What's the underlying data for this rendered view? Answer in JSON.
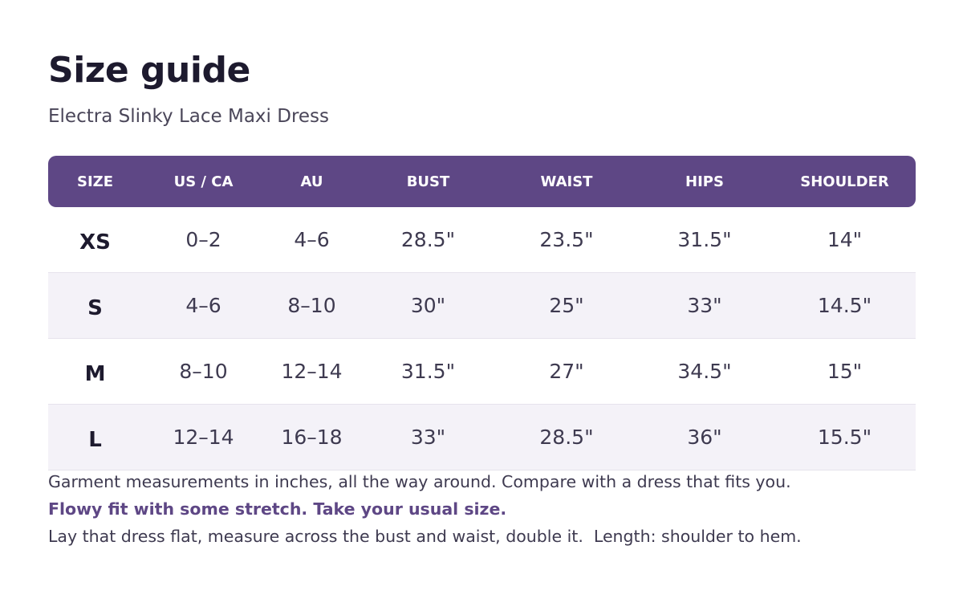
{
  "header": {
    "title": "Size guide",
    "subtitle": "Electra Slinky Lace Maxi Dress"
  },
  "table": {
    "columns": [
      "SIZE",
      "US / CA",
      "AU",
      "BUST",
      "WAIST",
      "HIPS",
      "SHOULDER"
    ],
    "rows": [
      [
        "XS",
        "0–2",
        "4–6",
        "28.5\"",
        "23.5\"",
        "31.5\"",
        "14\""
      ],
      [
        "S",
        "4–6",
        "8–10",
        "30\"",
        "25\"",
        "33\"",
        "14.5\""
      ],
      [
        "M",
        "8–10",
        "12–14",
        "31.5\"",
        "27\"",
        "34.5\"",
        "15\""
      ],
      [
        "L",
        "12–14",
        "16–18",
        "33\"",
        "28.5\"",
        "36\"",
        "15.5\""
      ]
    ]
  },
  "notes": [
    "Garment measurements in inches, all the way around. Compare with a dress that fits you.",
    "Flowy fit with some stretch. Take your usual size.",
    "Lay that dress flat, measure across the bust and waist, double it.  Length: shoulder to hem."
  ]
}
